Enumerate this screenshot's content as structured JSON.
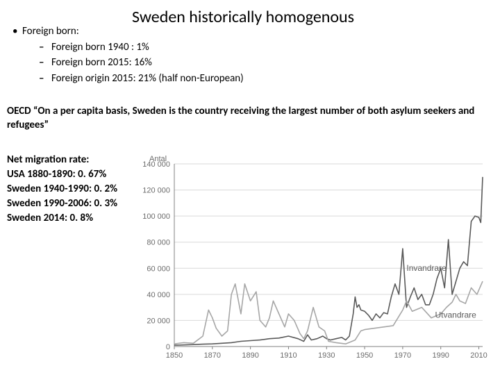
{
  "title": "Sweden historically homogenous",
  "bullets": {
    "level1": "Foreign born:",
    "items": [
      "Foreign born 1940 : 1%",
      "Foreign born 2015: 16%",
      "Foreign origin 2015: 21% (half non-European)"
    ]
  },
  "oecd_quote": "OECD “On a per capita basis, Sweden is the country receiving the largest number of both asylum seekers and refugees”",
  "migration_rates": {
    "heading": "Net migration rate:",
    "rows": [
      "USA 1880-1890: 0. 67%",
      "Sweden 1940-1990: 0. 2%",
      "Sweden 1990-2006: 0. 3%",
      "Sweden 2014: 0. 8%"
    ]
  },
  "chart": {
    "type": "line",
    "y_title": "Antal",
    "y_ticks": [
      0,
      20000,
      40000,
      60000,
      80000,
      100000,
      120000,
      140000
    ],
    "y_tick_labels": [
      "0",
      "20 000",
      "40 000",
      "60 000",
      "80 000",
      "100 000",
      "120 000",
      "140 000"
    ],
    "ylim": [
      0,
      140000
    ],
    "x_ticks": [
      1850,
      1870,
      1890,
      1910,
      1930,
      1950,
      1970,
      1990,
      2010
    ],
    "xlim": [
      1850,
      2012
    ],
    "grid_color": "#d9d9d9",
    "axis_color": "#808080",
    "background_color": "#ffffff",
    "line_width": 1.6,
    "series": [
      {
        "name": "Invandrare",
        "color": "#595959",
        "label_xy": [
          1972,
          58000
        ],
        "data": [
          [
            1850,
            1000
          ],
          [
            1855,
            1200
          ],
          [
            1860,
            1500
          ],
          [
            1865,
            1800
          ],
          [
            1870,
            2000
          ],
          [
            1875,
            2500
          ],
          [
            1880,
            3000
          ],
          [
            1885,
            4000
          ],
          [
            1890,
            4500
          ],
          [
            1895,
            5000
          ],
          [
            1900,
            6000
          ],
          [
            1905,
            6500
          ],
          [
            1910,
            8000
          ],
          [
            1915,
            6000
          ],
          [
            1918,
            4000
          ],
          [
            1920,
            9000
          ],
          [
            1922,
            5000
          ],
          [
            1925,
            6000
          ],
          [
            1928,
            8000
          ],
          [
            1930,
            6000
          ],
          [
            1932,
            5000
          ],
          [
            1935,
            6000
          ],
          [
            1938,
            7000
          ],
          [
            1940,
            5000
          ],
          [
            1942,
            8000
          ],
          [
            1944,
            25000
          ],
          [
            1945,
            38000
          ],
          [
            1946,
            30000
          ],
          [
            1947,
            32000
          ],
          [
            1948,
            28000
          ],
          [
            1950,
            27000
          ],
          [
            1952,
            24000
          ],
          [
            1954,
            20000
          ],
          [
            1956,
            25000
          ],
          [
            1958,
            22000
          ],
          [
            1960,
            26000
          ],
          [
            1962,
            25000
          ],
          [
            1964,
            38000
          ],
          [
            1966,
            48000
          ],
          [
            1968,
            40000
          ],
          [
            1970,
            75000
          ],
          [
            1972,
            30000
          ],
          [
            1974,
            38000
          ],
          [
            1976,
            45000
          ],
          [
            1978,
            36000
          ],
          [
            1980,
            40000
          ],
          [
            1982,
            32000
          ],
          [
            1984,
            32000
          ],
          [
            1986,
            40000
          ],
          [
            1988,
            52000
          ],
          [
            1990,
            60000
          ],
          [
            1992,
            45000
          ],
          [
            1994,
            82000
          ],
          [
            1996,
            40000
          ],
          [
            1998,
            50000
          ],
          [
            2000,
            60000
          ],
          [
            2002,
            65000
          ],
          [
            2004,
            62000
          ],
          [
            2006,
            96000
          ],
          [
            2008,
            100000
          ],
          [
            2010,
            99000
          ],
          [
            2011,
            95000
          ],
          [
            2012,
            130000
          ]
        ]
      },
      {
        "name": "Utvandrare",
        "color": "#a6a6a6",
        "label_xy": [
          1987,
          22000
        ],
        "data": [
          [
            1850,
            2000
          ],
          [
            1855,
            3000
          ],
          [
            1860,
            2500
          ],
          [
            1865,
            8000
          ],
          [
            1868,
            28000
          ],
          [
            1870,
            22000
          ],
          [
            1872,
            14000
          ],
          [
            1875,
            8000
          ],
          [
            1878,
            12000
          ],
          [
            1880,
            40000
          ],
          [
            1882,
            48000
          ],
          [
            1885,
            25000
          ],
          [
            1887,
            48000
          ],
          [
            1890,
            35000
          ],
          [
            1893,
            42000
          ],
          [
            1895,
            20000
          ],
          [
            1898,
            15000
          ],
          [
            1900,
            22000
          ],
          [
            1902,
            35000
          ],
          [
            1905,
            25000
          ],
          [
            1908,
            15000
          ],
          [
            1910,
            25000
          ],
          [
            1913,
            20000
          ],
          [
            1916,
            10000
          ],
          [
            1918,
            6000
          ],
          [
            1920,
            12000
          ],
          [
            1923,
            30000
          ],
          [
            1926,
            15000
          ],
          [
            1929,
            12000
          ],
          [
            1931,
            4000
          ],
          [
            1935,
            3000
          ],
          [
            1940,
            2000
          ],
          [
            1945,
            5000
          ],
          [
            1948,
            12000
          ],
          [
            1950,
            13000
          ],
          [
            1955,
            14000
          ],
          [
            1960,
            15000
          ],
          [
            1965,
            16000
          ],
          [
            1970,
            28000
          ],
          [
            1972,
            35000
          ],
          [
            1975,
            27000
          ],
          [
            1980,
            30000
          ],
          [
            1985,
            22000
          ],
          [
            1990,
            25000
          ],
          [
            1993,
            30000
          ],
          [
            1996,
            34000
          ],
          [
            1998,
            40000
          ],
          [
            2000,
            35000
          ],
          [
            2003,
            33000
          ],
          [
            2006,
            45000
          ],
          [
            2009,
            40000
          ],
          [
            2012,
            50000
          ]
        ]
      }
    ]
  }
}
